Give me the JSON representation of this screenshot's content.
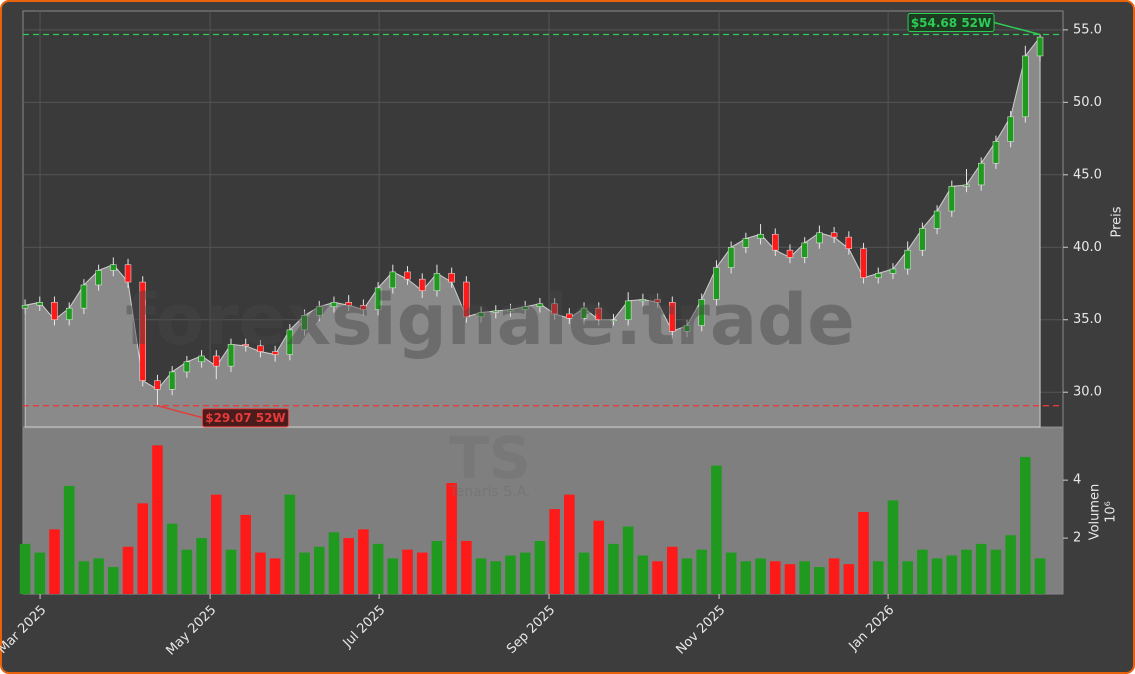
{
  "chart_data": {
    "type": "candlestick",
    "watermark": "forexsignale.trade",
    "symbol": "TS",
    "company": "Tenaris S.A.",
    "ylabel": "Preis",
    "volume_ylabel": "Volumen",
    "volume_unit": "10⁶",
    "up_color": "#1f9a1f",
    "down_color": "#ff1a1a",
    "area_color": "#8a8a8a",
    "grid": true,
    "xlim": [
      -0.14,
      70.56
    ],
    "xticks": [
      {
        "value": 1.02,
        "label": "Mar 2025"
      },
      {
        "value": 12.58,
        "label": "May 2025"
      },
      {
        "value": 24.07,
        "label": "Jul 2025"
      },
      {
        "value": 35.62,
        "label": "Sep 2025"
      },
      {
        "value": 47.18,
        "label": "Nov 2025"
      },
      {
        "value": 58.67,
        "label": "Jan 2026"
      }
    ],
    "ylim": [
      27.6,
      56.3
    ],
    "yticks": [
      {
        "value": 30,
        "label": "30.0"
      },
      {
        "value": 35,
        "label": "35.0"
      },
      {
        "value": 40,
        "label": "40.0"
      },
      {
        "value": 45,
        "label": "45.0"
      },
      {
        "value": 50,
        "label": "50.0"
      },
      {
        "value": 55,
        "label": "55.0"
      }
    ],
    "volume_ylim": [
      0.07,
      5.8
    ],
    "volume_yticks": [
      2,
      4
    ],
    "open": [
      35.8,
      36.0,
      36.2,
      35.0,
      35.8,
      37.4,
      38.4,
      38.8,
      37.6,
      30.8,
      30.2,
      31.4,
      32.1,
      32.5,
      31.8,
      33.3,
      33.2,
      32.8,
      32.6,
      34.3,
      35.3,
      35.9,
      36.2,
      36.0,
      35.7,
      37.2,
      38.3,
      37.8,
      37.0,
      38.2,
      37.6,
      35.2,
      35.5,
      35.6,
      35.7,
      35.9,
      36.1,
      35.4,
      35.1,
      35.8,
      35.0,
      35.0,
      36.3,
      36.4,
      36.2,
      34.2,
      34.6,
      36.4,
      38.6,
      40.0,
      40.6,
      40.9,
      39.8,
      39.3,
      40.3,
      41.0,
      40.7,
      39.9,
      37.9,
      38.2,
      38.5,
      39.8,
      41.3,
      42.5,
      44.2,
      44.3,
      45.8,
      47.3,
      49.0,
      53.2
    ],
    "high": [
      36.4,
      36.6,
      36.6,
      36.2,
      37.8,
      38.8,
      39.3,
      39.2,
      38.0,
      31.2,
      31.8,
      32.5,
      32.9,
      32.9,
      33.7,
      33.7,
      33.6,
      33.2,
      34.7,
      35.7,
      36.3,
      36.6,
      36.7,
      36.4,
      37.6,
      38.8,
      38.7,
      38.2,
      38.8,
      38.6,
      38.0,
      35.9,
      36.0,
      36.1,
      36.3,
      36.5,
      36.5,
      35.8,
      36.2,
      36.2,
      35.4,
      36.9,
      36.8,
      36.8,
      36.6,
      35.0,
      36.8,
      39.1,
      40.4,
      41.0,
      41.6,
      41.3,
      40.2,
      40.7,
      41.5,
      41.4,
      41.1,
      40.3,
      38.6,
      38.9,
      40.4,
      41.7,
      42.9,
      44.6,
      45.4,
      46.2,
      47.7,
      49.4,
      53.9,
      54.68
    ],
    "low": [
      35.4,
      35.6,
      34.6,
      34.6,
      35.4,
      37.0,
      38.0,
      37.2,
      30.4,
      29.07,
      29.8,
      31.0,
      31.7,
      30.9,
      31.4,
      32.8,
      32.4,
      32.1,
      32.2,
      33.9,
      34.9,
      35.5,
      35.6,
      35.3,
      35.3,
      36.8,
      37.4,
      36.5,
      36.6,
      37.2,
      34.8,
      34.8,
      35.1,
      35.2,
      35.3,
      35.5,
      35.0,
      34.7,
      34.7,
      34.6,
      34.6,
      34.6,
      35.9,
      35.8,
      33.7,
      33.8,
      34.2,
      36.0,
      38.2,
      39.6,
      40.2,
      39.4,
      38.9,
      38.9,
      39.9,
      40.3,
      39.5,
      37.5,
      37.5,
      37.8,
      38.1,
      39.4,
      40.9,
      42.1,
      43.8,
      43.9,
      45.4,
      46.9,
      48.6,
      52.8
    ],
    "close": [
      36.0,
      36.2,
      35.0,
      35.8,
      37.4,
      38.4,
      38.8,
      37.6,
      30.8,
      30.2,
      31.4,
      32.1,
      32.5,
      31.8,
      33.3,
      33.2,
      32.8,
      32.6,
      34.3,
      35.3,
      35.9,
      36.2,
      36.0,
      35.7,
      37.2,
      38.3,
      37.8,
      37.0,
      38.2,
      37.6,
      35.2,
      35.5,
      35.6,
      35.7,
      35.9,
      36.1,
      35.4,
      35.1,
      35.8,
      35.0,
      35.0,
      36.3,
      36.4,
      36.2,
      34.2,
      34.6,
      36.4,
      38.6,
      40.0,
      40.6,
      40.9,
      39.8,
      39.3,
      40.3,
      41.0,
      40.7,
      39.9,
      37.9,
      38.2,
      38.5,
      39.8,
      41.3,
      42.5,
      44.2,
      44.3,
      45.8,
      47.3,
      49.0,
      53.2,
      54.5
    ],
    "volume": [
      1.8,
      1.5,
      2.3,
      3.8,
      1.2,
      1.3,
      1.0,
      1.7,
      3.2,
      5.2,
      2.5,
      1.6,
      2.0,
      3.5,
      1.6,
      2.8,
      1.5,
      1.3,
      3.5,
      1.5,
      1.7,
      2.2,
      2.0,
      2.3,
      1.8,
      1.3,
      1.6,
      1.5,
      1.9,
      3.9,
      1.9,
      1.3,
      1.2,
      1.4,
      1.5,
      1.9,
      3.0,
      3.5,
      1.5,
      2.6,
      1.8,
      2.4,
      1.4,
      1.2,
      1.7,
      1.3,
      1.6,
      4.5,
      1.5,
      1.2,
      1.3,
      1.2,
      1.1,
      1.2,
      1.0,
      1.3,
      1.1,
      2.9,
      1.2,
      3.3,
      1.2,
      1.6,
      1.3,
      1.4,
      1.6,
      1.8,
      1.6,
      2.1,
      4.8,
      1.3
    ],
    "annotations": [
      {
        "value": 54.68,
        "label": "$54.68 52W",
        "color": "#2ecc55"
      },
      {
        "value": 29.07,
        "label": "$29.07 52W",
        "color": "#e83a3a"
      }
    ]
  }
}
